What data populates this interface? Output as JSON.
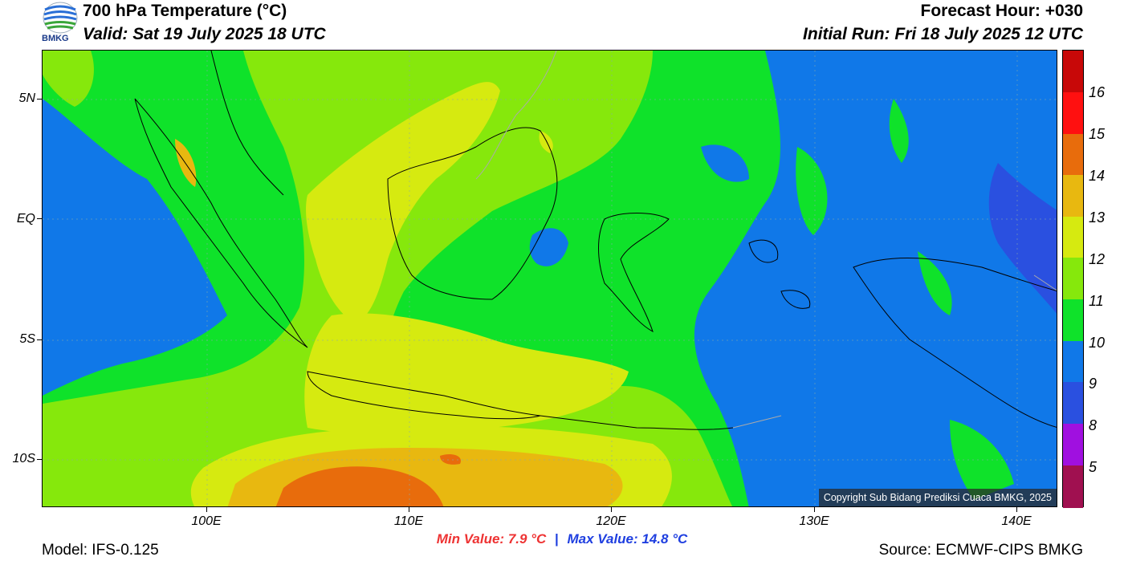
{
  "header": {
    "title": "700 hPa Temperature (°C)",
    "valid": "Valid: Sat 19 July 2025 18 UTC",
    "forecast_hour": "Forecast Hour: +030",
    "initial_run": "Initial Run: Fri 18 July 2025 12 UTC",
    "logo_text": "BMKG"
  },
  "map": {
    "lat_labels": [
      "5N",
      "EQ",
      "5S",
      "10S"
    ],
    "lon_labels": [
      "100E",
      "110E",
      "120E",
      "130E",
      "140E"
    ],
    "copyright": "Copyright Sub Bidang Prediksi Cuaca BMKG, 2025",
    "colors": {
      "deep_blue": "#2a50e0",
      "blue": "#1078e8",
      "green": "#0fe22a",
      "lime": "#86e80c",
      "yellow": "#d6ea10",
      "gold": "#e8b810",
      "orange": "#e86c0c"
    }
  },
  "colorbar": {
    "labels": [
      "16",
      "15",
      "14",
      "13",
      "12",
      "11",
      "10",
      "9",
      "8",
      "5"
    ],
    "colors": [
      "#c80808",
      "#ff1010",
      "#e86c0c",
      "#e8b810",
      "#d6ea10",
      "#86e80c",
      "#0fe22a",
      "#1078e8",
      "#2a50e0",
      "#a010e0",
      "#a01050"
    ]
  },
  "footer": {
    "min_value": "Min Value: 7.9 °C",
    "separator": "|",
    "max_value": "Max Value: 14.8 °C",
    "model": "Model: IFS-0.125",
    "source": "Source: ECMWF-CIPS BMKG"
  }
}
